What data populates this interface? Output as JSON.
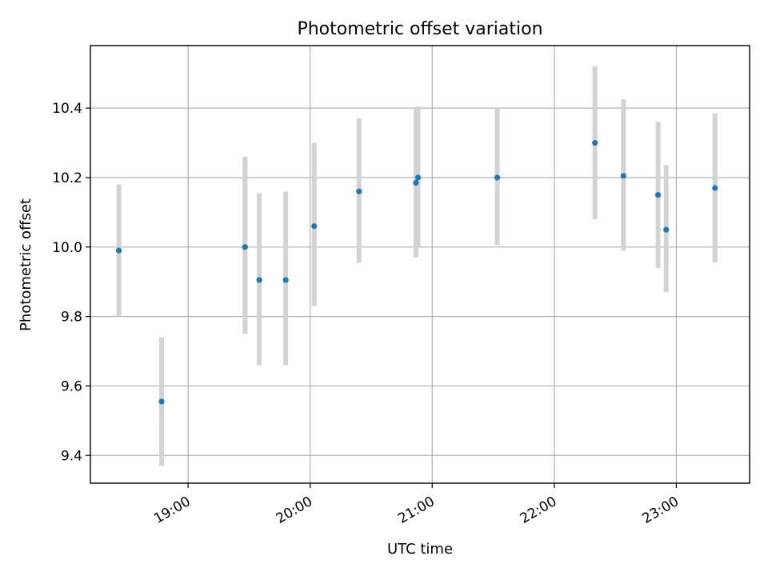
{
  "chart_data": {
    "type": "scatter",
    "title": "Photometric offset variation",
    "xlabel": "UTC time",
    "ylabel": "Photometric offset",
    "x_ticks": [
      "19:00",
      "20:00",
      "21:00",
      "22:00",
      "23:00"
    ],
    "y_ticks": [
      "9.4",
      "9.6",
      "9.8",
      "10.0",
      "10.2",
      "10.4"
    ],
    "xlim": [
      "18:12",
      "23:36"
    ],
    "ylim": [
      9.32,
      10.58
    ],
    "grid": true,
    "colors": {
      "marker": "#1f77b4",
      "errorbar": "#d3d3d3",
      "grid": "#b0b0b0"
    },
    "points": [
      {
        "x": "18:26",
        "y": 9.99,
        "yerr_low": 9.8,
        "yerr_high": 10.18
      },
      {
        "x": "18:47",
        "y": 9.555,
        "yerr_low": 9.37,
        "yerr_high": 9.74
      },
      {
        "x": "19:28",
        "y": 10.0,
        "yerr_low": 9.75,
        "yerr_high": 10.26
      },
      {
        "x": "19:35",
        "y": 9.905,
        "yerr_low": 9.66,
        "yerr_high": 10.155
      },
      {
        "x": "19:48",
        "y": 9.905,
        "yerr_low": 9.66,
        "yerr_high": 10.16
      },
      {
        "x": "20:02",
        "y": 10.06,
        "yerr_low": 9.83,
        "yerr_high": 10.3
      },
      {
        "x": "20:24",
        "y": 10.16,
        "yerr_low": 9.955,
        "yerr_high": 10.37
      },
      {
        "x": "20:52",
        "y": 10.185,
        "yerr_low": 9.97,
        "yerr_high": 10.4
      },
      {
        "x": "20:53",
        "y": 10.2,
        "yerr_low": 10.0,
        "yerr_high": 10.405
      },
      {
        "x": "21:32",
        "y": 10.2,
        "yerr_low": 10.005,
        "yerr_high": 10.4
      },
      {
        "x": "22:20",
        "y": 10.3,
        "yerr_low": 10.08,
        "yerr_high": 10.52
      },
      {
        "x": "22:34",
        "y": 10.205,
        "yerr_low": 9.99,
        "yerr_high": 10.425
      },
      {
        "x": "22:51",
        "y": 10.15,
        "yerr_low": 9.94,
        "yerr_high": 10.36
      },
      {
        "x": "22:55",
        "y": 10.05,
        "yerr_low": 9.87,
        "yerr_high": 10.235
      },
      {
        "x": "23:19",
        "y": 10.17,
        "yerr_low": 9.955,
        "yerr_high": 10.385
      }
    ]
  }
}
